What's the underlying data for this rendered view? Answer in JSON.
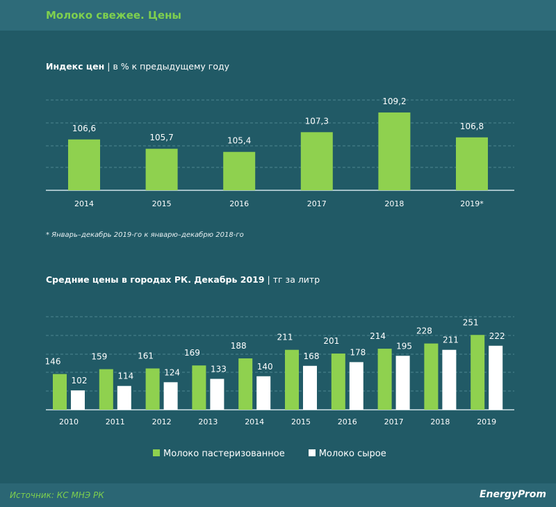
{
  "header": {
    "title": "Молоко свежее. Цены"
  },
  "chart_data": [
    {
      "type": "bar",
      "title": "Индекс цен",
      "subtitle": "в % к предыдущему году",
      "categories": [
        "2014",
        "2015",
        "2016",
        "2017",
        "2018",
        "2019*"
      ],
      "values": [
        106.6,
        105.7,
        105.4,
        107.3,
        109.2,
        106.8
      ],
      "labels": [
        "106,6",
        "105,7",
        "105,4",
        "107,3",
        "109,2",
        "106,8"
      ],
      "ylim": [
        101.7,
        110.4
      ],
      "grid": true,
      "color": "#8fd14f",
      "note": "* Январь–декабрь 2019-го к январю–декабрю 2018-го"
    },
    {
      "type": "bar",
      "title": "Средние цены в городах РК. Декабрь 2019",
      "subtitle": "тг за литр",
      "categories": [
        "2010",
        "2011",
        "2012",
        "2013",
        "2014",
        "2015",
        "2016",
        "2017",
        "2018",
        "2019"
      ],
      "series": [
        {
          "name": "Молоко пастеризованное",
          "color": "#8fd14f",
          "values": [
            146,
            159,
            161,
            169,
            188,
            211,
            201,
            214,
            228,
            251
          ]
        },
        {
          "name": "Молоко сырое",
          "color": "#ffffff",
          "values": [
            102,
            114,
            124,
            133,
            140,
            168,
            178,
            195,
            211,
            222
          ]
        }
      ],
      "ylim": [
        50,
        300
      ],
      "grid": true,
      "legend": "bottom"
    }
  ],
  "footer": {
    "source": "Источник: КС МНЭ РК",
    "logo": "EnergyProm"
  }
}
